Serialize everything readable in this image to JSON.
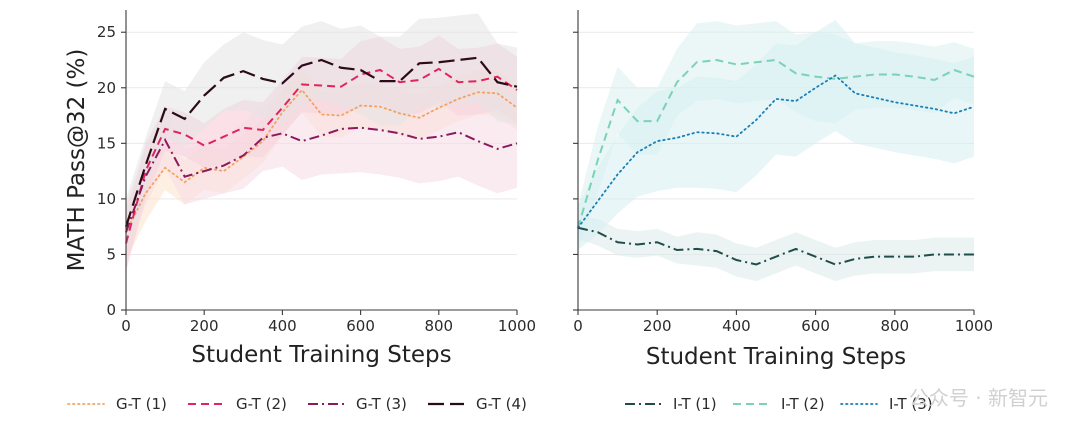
{
  "watermark": {
    "text": "公众号 · 新智元"
  },
  "chart_data": [
    {
      "type": "line",
      "xlabel": "Student Training Steps",
      "ylabel": "MATH Pass@32 (%)",
      "xlim": [
        0,
        1000
      ],
      "ylim": [
        0,
        27
      ],
      "xticks": [
        "0",
        "200",
        "400",
        "600",
        "800",
        "1000"
      ],
      "yticks": [
        "0",
        "5",
        "10",
        "15",
        "20",
        "25"
      ],
      "grid": "horizontal",
      "legend_position": "bottom",
      "series": [
        {
          "name": "G-T (1)",
          "color": "#f4a261",
          "dash": "dotted",
          "band_color": "#fde2cc",
          "x": [
            0,
            50,
            100,
            150,
            200,
            250,
            300,
            350,
            400,
            450,
            500,
            550,
            600,
            650,
            700,
            750,
            800,
            850,
            900,
            950,
            1000
          ],
          "y": [
            7,
            10.5,
            12.8,
            11.5,
            12.8,
            12.5,
            13.8,
            15.2,
            17.8,
            19.8,
            17.6,
            17.5,
            18.4,
            18.3,
            17.7,
            17.3,
            18.2,
            19,
            19.6,
            19.5,
            18.2
          ],
          "band": [
            2.5,
            2.5,
            2,
            2,
            2,
            2,
            2,
            2,
            2,
            2,
            2,
            2,
            2,
            2,
            2,
            2,
            2,
            2,
            2,
            2,
            2
          ]
        },
        {
          "name": "G-T (2)",
          "color": "#e0245e",
          "dash": "dashed",
          "band_color": "#f7c6d6",
          "x": [
            0,
            50,
            100,
            150,
            200,
            250,
            300,
            350,
            400,
            450,
            500,
            550,
            600,
            650,
            700,
            750,
            800,
            850,
            900,
            950,
            1000
          ],
          "y": [
            6,
            12.5,
            16.3,
            15.8,
            14.8,
            15.6,
            16.4,
            16.2,
            18.2,
            20.3,
            20.2,
            20.1,
            21.2,
            21.6,
            20.5,
            20.7,
            21.7,
            20.5,
            20.6,
            21,
            19.8
          ],
          "band": [
            2.5,
            2.5,
            2,
            2,
            2,
            2.5,
            2.5,
            2.5,
            2.5,
            2.5,
            2.5,
            2.5,
            3,
            3,
            3,
            3,
            3,
            3,
            3,
            3,
            3
          ]
        },
        {
          "name": "G-T (3)",
          "color": "#8b1a5c",
          "dash": "dashdot",
          "band_color": "#f5dbe6",
          "x": [
            0,
            50,
            100,
            150,
            200,
            250,
            300,
            350,
            400,
            450,
            500,
            550,
            600,
            650,
            700,
            750,
            800,
            850,
            900,
            950,
            1000
          ],
          "y": [
            7,
            12,
            15.3,
            12,
            12.5,
            13,
            13.9,
            15.5,
            15.9,
            15.2,
            15.7,
            16.3,
            16.4,
            16.2,
            15.9,
            15.4,
            15.6,
            16,
            15.2,
            14.5,
            15
          ],
          "band": [
            2.5,
            2.5,
            2.5,
            2.5,
            2.5,
            2.5,
            3,
            3,
            3,
            3.5,
            3.5,
            4,
            4,
            4,
            4,
            4,
            4,
            4,
            4,
            4,
            4
          ]
        },
        {
          "name": "G-T (4)",
          "color": "#2b0a1a",
          "dash": "longdash",
          "band_color": "#e4e4e4",
          "x": [
            0,
            50,
            100,
            150,
            200,
            250,
            300,
            350,
            400,
            450,
            500,
            550,
            600,
            650,
            700,
            750,
            800,
            850,
            900,
            950,
            1000
          ],
          "y": [
            7.5,
            13,
            18.1,
            17.2,
            19.3,
            20.9,
            21.5,
            20.8,
            20.4,
            22,
            22.5,
            21.8,
            21.6,
            20.6,
            20.6,
            22.2,
            22.3,
            22.5,
            22.7,
            20.5,
            20.1
          ],
          "band": [
            2.5,
            2.5,
            2.5,
            2.5,
            3,
            3,
            3.5,
            3.5,
            3.5,
            3.5,
            3.5,
            3.5,
            4,
            4,
            4,
            4,
            4,
            4,
            4,
            3.5,
            3.5
          ]
        }
      ]
    },
    {
      "type": "line",
      "xlabel": "Student Training Steps",
      "ylabel": "",
      "xlim": [
        0,
        1000
      ],
      "ylim": [
        0,
        27
      ],
      "xticks": [
        "0",
        "200",
        "400",
        "600",
        "800",
        "1000"
      ],
      "yticks": [],
      "grid": "horizontal",
      "legend_position": "bottom",
      "series": [
        {
          "name": "I-T (1)",
          "color": "#1f4e4a",
          "dash": "dashdot",
          "band_color": "#dceaea",
          "x": [
            0,
            50,
            100,
            150,
            200,
            250,
            300,
            350,
            400,
            450,
            500,
            550,
            600,
            650,
            700,
            750,
            800,
            850,
            900,
            950,
            1000
          ],
          "y": [
            7.4,
            7,
            6.1,
            5.9,
            6.1,
            5.4,
            5.5,
            5.3,
            4.5,
            4.1,
            4.8,
            5.5,
            4.8,
            4.1,
            4.6,
            4.8,
            4.8,
            4.8,
            5,
            5,
            5
          ],
          "band": [
            1,
            1.2,
            1.2,
            1.2,
            1.2,
            1.2,
            1.5,
            1.5,
            1.5,
            1.5,
            1.5,
            1.5,
            1.5,
            1.5,
            1.5,
            1.5,
            1.5,
            1.5,
            1.5,
            1.5,
            1.5
          ]
        },
        {
          "name": "I-T (2)",
          "color": "#7ad3b5",
          "dash": "dashed",
          "band_color": "#d9f1ee",
          "x": [
            0,
            50,
            100,
            150,
            200,
            250,
            300,
            350,
            400,
            450,
            500,
            550,
            600,
            650,
            700,
            750,
            800,
            850,
            900,
            950,
            1000
          ],
          "y": [
            7.4,
            13.5,
            18.9,
            17,
            17,
            20.5,
            22.3,
            22.5,
            22.1,
            22.3,
            22.5,
            21.3,
            21,
            20.8,
            21,
            21.2,
            21.2,
            21,
            20.7,
            21.6,
            21
          ],
          "band": [
            2,
            3,
            3,
            3,
            3,
            3,
            3.5,
            3.5,
            3.5,
            3.5,
            3.5,
            3.5,
            4,
            4,
            3,
            3,
            3,
            3,
            3,
            2.5,
            2.5
          ]
        },
        {
          "name": "I-T (3)",
          "color": "#1a7fb5",
          "dash": "dotted",
          "band_color": "#d6eef3",
          "x": [
            0,
            50,
            100,
            150,
            200,
            250,
            300,
            350,
            400,
            450,
            500,
            550,
            600,
            650,
            700,
            750,
            800,
            850,
            900,
            950,
            1000
          ],
          "y": [
            7.4,
            9.8,
            12.2,
            14.2,
            15.2,
            15.5,
            16,
            15.9,
            15.6,
            17.1,
            19,
            18.8,
            20,
            21.1,
            19.5,
            19.1,
            18.7,
            18.4,
            18.1,
            17.7,
            18.3
          ],
          "band": [
            2,
            3,
            3.5,
            4,
            4.5,
            4.5,
            5,
            5,
            5,
            5,
            5,
            5,
            5,
            5,
            4.5,
            4.5,
            4.5,
            4.5,
            4.5,
            4.5,
            4.5
          ]
        }
      ]
    }
  ]
}
